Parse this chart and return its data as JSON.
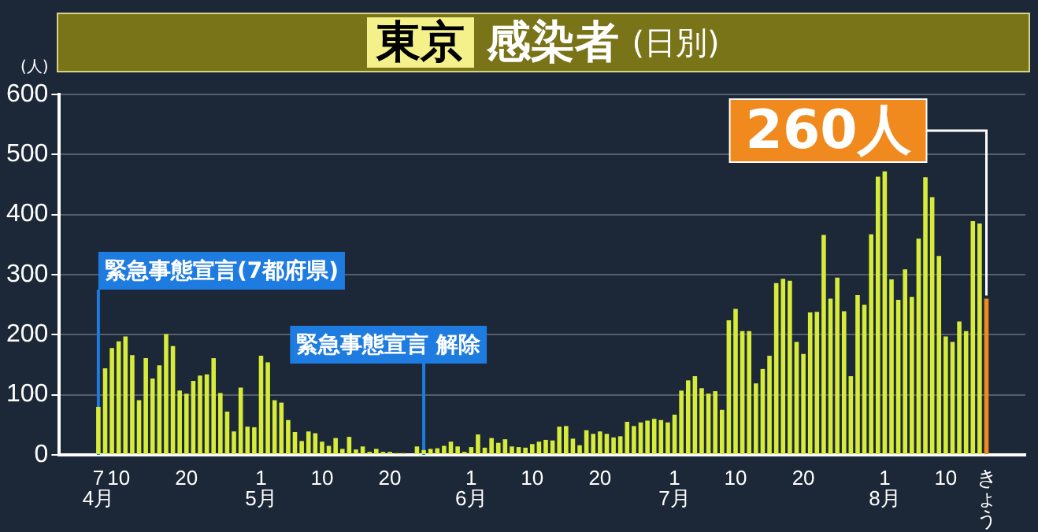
{
  "chart_data": {
    "type": "bar",
    "title": "東京 感染者(日別)",
    "ylabel": "(人)",
    "x": [
      "--04-07",
      "--04-08",
      "--04-09",
      "--04-10",
      "--04-11",
      "--04-12",
      "--04-13",
      "--04-14",
      "--04-15",
      "--04-16",
      "--04-17",
      "--04-18",
      "--04-19",
      "--04-20",
      "--04-21",
      "--04-22",
      "--04-23",
      "--04-24",
      "--04-25",
      "--04-26",
      "--04-27",
      "--04-28",
      "--04-29",
      "--04-30",
      "--05-01",
      "--05-02",
      "--05-03",
      "--05-04",
      "--05-05",
      "--05-06",
      "--05-07",
      "--05-08",
      "--05-09",
      "--05-10",
      "--05-11",
      "--05-12",
      "--05-13",
      "--05-14",
      "--05-15",
      "--05-16",
      "--05-17",
      "--05-18",
      "--05-19",
      "--05-20",
      "--05-21",
      "--05-22",
      "--05-23",
      "--05-24",
      "--05-25",
      "--05-26",
      "--05-27",
      "--05-28",
      "--05-29",
      "--05-30",
      "--05-31",
      "--06-01",
      "--06-02",
      "--06-03",
      "--06-04",
      "--06-05",
      "--06-06",
      "--06-07",
      "--06-08",
      "--06-09",
      "--06-10",
      "--06-11",
      "--06-12",
      "--06-13",
      "--06-14",
      "--06-15",
      "--06-16",
      "--06-17",
      "--06-18",
      "--06-19",
      "--06-20",
      "--06-21",
      "--06-22",
      "--06-23",
      "--06-24",
      "--06-25",
      "--06-26",
      "--06-27",
      "--06-28",
      "--06-29",
      "--06-30",
      "--07-01",
      "--07-02",
      "--07-03",
      "--07-04",
      "--07-05",
      "--07-06",
      "--07-07",
      "--07-08",
      "--07-09",
      "--07-10",
      "--07-11",
      "--07-12",
      "--07-13",
      "--07-14",
      "--07-15",
      "--07-16",
      "--07-17",
      "--07-18",
      "--07-19",
      "--07-20",
      "--07-21",
      "--07-22",
      "--07-23",
      "--07-24",
      "--07-25",
      "--07-26",
      "--07-27",
      "--07-28",
      "--07-29",
      "--07-30",
      "--07-31",
      "--08-01",
      "--08-02",
      "--08-03",
      "--08-04",
      "--08-05",
      "--08-06",
      "--08-07",
      "--08-08",
      "--08-09",
      "--08-10",
      "--08-11",
      "--08-12",
      "--08-13",
      "--08-14",
      "--08-15",
      "--08-16"
    ],
    "values": [
      80,
      144,
      178,
      189,
      197,
      166,
      91,
      161,
      127,
      149,
      201,
      181,
      107,
      102,
      123,
      132,
      134,
      161,
      103,
      72,
      39,
      112,
      47,
      46,
      165,
      154,
      91,
      87,
      58,
      38,
      23,
      39,
      36,
      22,
      15,
      28,
      10,
      30,
      9,
      14,
      5,
      10,
      5,
      5,
      3,
      3,
      null,
      14,
      8,
      10,
      11,
      15,
      22,
      14,
      5,
      13,
      34,
      12,
      28,
      20,
      26,
      14,
      13,
      12,
      18,
      22,
      25,
      24,
      47,
      48,
      27,
      16,
      41,
      35,
      39,
      35,
      29,
      31,
      55,
      48,
      54,
      57,
      60,
      58,
      54,
      67,
      107,
      124,
      131,
      111,
      102,
      106,
      75,
      224,
      243,
      206,
      206,
      119,
      143,
      165,
      286,
      293,
      290,
      188,
      168,
      237,
      238,
      366,
      260,
      295,
      239,
      131,
      266,
      250,
      367,
      463,
      472,
      292,
      258,
      309,
      263,
      360,
      462,
      429,
      331,
      197,
      188,
      222,
      206,
      389,
      385,
      260
    ],
    "colors": [
      "#d6eb3a",
      "#d6eb3a",
      "#d6eb3a",
      "#d6eb3a",
      "#d6eb3a",
      "#d6eb3a",
      "#d6eb3a",
      "#d6eb3a",
      "#d6eb3a",
      "#d6eb3a",
      "#d6eb3a",
      "#d6eb3a",
      "#d6eb3a",
      "#d6eb3a",
      "#d6eb3a",
      "#d6eb3a",
      "#d6eb3a",
      "#d6eb3a",
      "#d6eb3a",
      "#d6eb3a",
      "#d6eb3a",
      "#d6eb3a",
      "#d6eb3a",
      "#d6eb3a",
      "#d6eb3a",
      "#d6eb3a",
      "#d6eb3a",
      "#d6eb3a",
      "#d6eb3a",
      "#d6eb3a",
      "#d6eb3a",
      "#d6eb3a",
      "#d6eb3a",
      "#d6eb3a",
      "#d6eb3a",
      "#d6eb3a",
      "#d6eb3a",
      "#d6eb3a",
      "#d6eb3a",
      "#d6eb3a",
      "#d6eb3a",
      "#d6eb3a",
      "#d6eb3a",
      "#d6eb3a",
      "#d6eb3a",
      "#d6eb3a",
      "#d6eb3a",
      "#d6eb3a",
      "#d6eb3a",
      "#d6eb3a",
      "#d6eb3a",
      "#d6eb3a",
      "#d6eb3a",
      "#d6eb3a",
      "#d6eb3a",
      "#d6eb3a",
      "#d6eb3a",
      "#d6eb3a",
      "#d6eb3a",
      "#d6eb3a",
      "#d6eb3a",
      "#d6eb3a",
      "#d6eb3a",
      "#d6eb3a",
      "#d6eb3a",
      "#d6eb3a",
      "#d6eb3a",
      "#d6eb3a",
      "#d6eb3a",
      "#d6eb3a",
      "#d6eb3a",
      "#d6eb3a",
      "#d6eb3a",
      "#d6eb3a",
      "#d6eb3a",
      "#d6eb3a",
      "#d6eb3a",
      "#d6eb3a",
      "#d6eb3a",
      "#d6eb3a",
      "#d6eb3a",
      "#d6eb3a",
      "#d6eb3a",
      "#d6eb3a",
      "#d6eb3a",
      "#d6eb3a",
      "#d6eb3a",
      "#d6eb3a",
      "#d6eb3a",
      "#d6eb3a",
      "#d6eb3a",
      "#d6eb3a",
      "#d6eb3a",
      "#d6eb3a",
      "#d6eb3a",
      "#d6eb3a",
      "#d6eb3a",
      "#d6eb3a",
      "#d6eb3a",
      "#d6eb3a",
      "#d6eb3a",
      "#d6eb3a",
      "#d6eb3a",
      "#d6eb3a",
      "#d6eb3a",
      "#d6eb3a",
      "#d6eb3a",
      "#d6eb3a",
      "#d6eb3a",
      "#d6eb3a",
      "#d6eb3a",
      "#d6eb3a",
      "#d6eb3a",
      "#d6eb3a",
      "#d6eb3a",
      "#d6eb3a",
      "#d6eb3a",
      "#d6eb3a",
      "#d6eb3a",
      "#d6eb3a",
      "#d6eb3a",
      "#d6eb3a",
      "#d6eb3a",
      "#d6eb3a",
      "#d6eb3a",
      "#d6eb3a",
      "#d6eb3a",
      "#d6eb3a",
      "#d6eb3a",
      "#d6eb3a",
      "#d6eb3a",
      "#f08a1e"
    ],
    "xlim": [
      "--04-06",
      "--08-17"
    ],
    "xticks": [
      {
        "value": "--04-07",
        "label": "7\n4月"
      },
      {
        "value": "--04-10",
        "label": "10"
      },
      {
        "value": "--04-20",
        "label": "20"
      },
      {
        "value": "--05-01",
        "label": "1\n5月"
      },
      {
        "value": "--05-10",
        "label": "10"
      },
      {
        "value": "--05-20",
        "label": "20"
      },
      {
        "value": "--06-01",
        "label": "1\n6月"
      },
      {
        "value": "--06-10",
        "label": "10"
      },
      {
        "value": "--06-20",
        "label": "20"
      },
      {
        "value": "--07-01",
        "label": "1\n7月"
      },
      {
        "value": "--07-10",
        "label": "10"
      },
      {
        "value": "--07-20",
        "label": "20"
      },
      {
        "value": "--08-01",
        "label": "1\n8月"
      },
      {
        "value": "--08-10",
        "label": "10"
      },
      {
        "value": "--08-16",
        "label": "きょう"
      }
    ],
    "ylim": [
      0,
      600
    ],
    "yticks": [
      0,
      100,
      200,
      300,
      400,
      500,
      600
    ],
    "ref_lines": [
      {
        "axis": "x",
        "value": "--04-07",
        "label": "緊急事態宣言(7都府県)",
        "color": "#1e7be0"
      },
      {
        "axis": "x",
        "value": "--05-25",
        "label": "緊急事態宣言 解除",
        "color": "#1e7be0"
      }
    ],
    "annotations": [
      {
        "text": "260人",
        "x": "--08-16",
        "y": 260
      }
    ],
    "grid": "y",
    "legend": false
  }
}
